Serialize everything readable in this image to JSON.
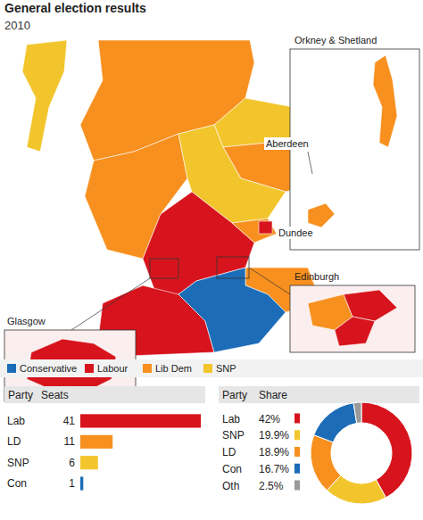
{
  "title": "General election results",
  "subtitle": "2010",
  "map": {
    "labels": [
      "Orkney & Shetland",
      "Aberdeen",
      "Dundee",
      "Edinburgh",
      "Glasgow"
    ],
    "legend": [
      {
        "name": "Conservative",
        "color": "#1c6cb7"
      },
      {
        "name": "Labour",
        "color": "#d7141d"
      },
      {
        "name": "Lib Dem",
        "color": "#f7901e"
      },
      {
        "name": "SNP",
        "color": "#f2c52c"
      }
    ],
    "regions": [
      "Lib Dem",
      "SNP",
      "Lib Dem",
      "Lib Dem",
      "SNP",
      "Labour",
      "Lib Dem",
      "Lib Dem",
      "Labour",
      "Conservative",
      "SNP",
      "Labour",
      "Labour",
      "Lib Dem",
      "Lib Dem",
      "Labour",
      "Lib Dem",
      "Labour",
      "Labour"
    ]
  },
  "chart_data": [
    {
      "type": "bar",
      "orientation": "horizontal",
      "ylabel": "Party",
      "xlabel": "Seats",
      "categories": [
        "Lab",
        "LD",
        "SNP",
        "Con"
      ],
      "values": [
        41,
        11,
        6,
        1
      ],
      "colors": [
        "#d7141d",
        "#f7901e",
        "#f2c52c",
        "#1c6cb7"
      ],
      "xlim": [
        0,
        41
      ],
      "data_labels": true,
      "tick_labels": "y"
    },
    {
      "type": "pie",
      "xlabel": "Party",
      "ylabel": "Share",
      "categories": [
        "Lab",
        "SNP",
        "LD",
        "Con",
        "Oth"
      ],
      "values": [
        42,
        19.9,
        18.9,
        16.7,
        2.5
      ],
      "value_labels": [
        "42%",
        "19.9%",
        "18.9%",
        "16.7%",
        "2.5%"
      ],
      "colors": [
        "#d7141d",
        "#f2c52c",
        "#f7901e",
        "#1c6cb7",
        "#9a9a9a"
      ],
      "data_labels": true
    }
  ]
}
